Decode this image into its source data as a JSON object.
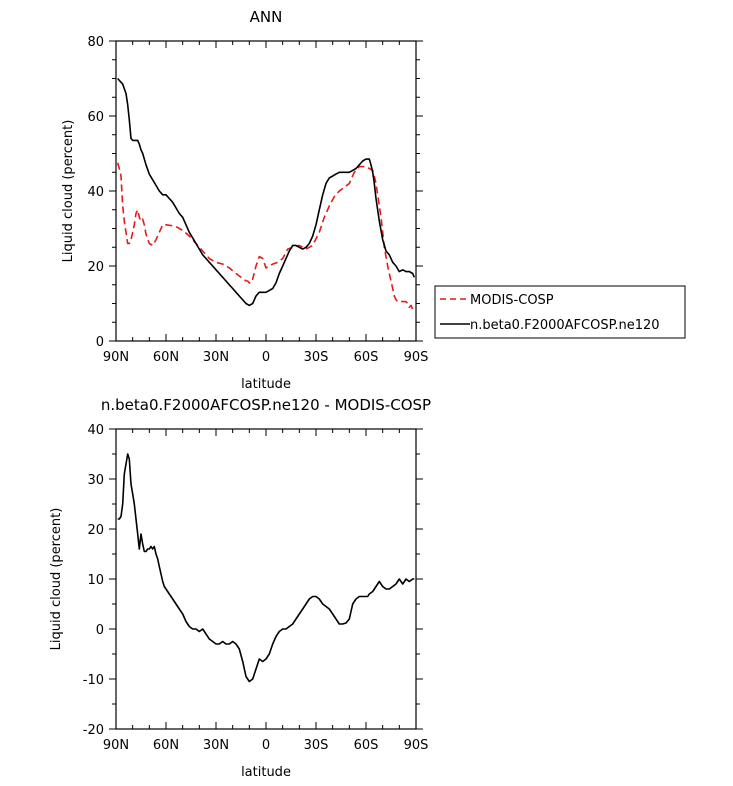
{
  "chart_data": [
    {
      "type": "line",
      "title": "ANN",
      "xlabel": "latitude",
      "ylabel": "Liquid cloud (percent)",
      "xlim": [
        90,
        -90
      ],
      "ylim": [
        0,
        80
      ],
      "xticks": [
        90,
        60,
        30,
        0,
        -30,
        -60,
        -90
      ],
      "xtick_labels": [
        "90N",
        "60N",
        "30N",
        "0",
        "30S",
        "60S",
        "90S"
      ],
      "yticks": [
        0,
        20,
        40,
        60,
        80
      ],
      "ytick_labels": [
        "0",
        "20",
        "40",
        "60",
        "80"
      ],
      "legend": {
        "placement": "right",
        "entries": [
          "MODIS-COSP",
          "n.beta0.F2000AFCOSP.ne120"
        ]
      },
      "series": [
        {
          "name": "MODIS-COSP",
          "color": "#e41a1c",
          "dash": "dashed",
          "x": [
            89,
            88,
            87,
            86,
            85,
            84,
            83,
            82,
            81,
            80,
            79,
            78,
            77,
            76,
            75,
            74,
            73,
            72,
            70,
            68,
            66,
            64,
            62,
            60,
            57,
            54,
            50,
            46,
            42,
            38,
            34,
            30,
            26,
            22,
            18,
            15,
            12,
            11,
            10,
            9,
            8,
            6,
            4,
            2,
            0,
            -2,
            -4,
            -7,
            -10,
            -13,
            -16,
            -20,
            -24,
            -28,
            -32,
            -35,
            -38,
            -41,
            -44,
            -47,
            -50,
            -53,
            -56,
            -58,
            -60,
            -62,
            -64,
            -65,
            -66,
            -67,
            -68,
            -69,
            -70,
            -71,
            -72,
            -73,
            -74,
            -75,
            -76,
            -77,
            -78,
            -79,
            -80,
            -82,
            -84,
            -85,
            -86,
            -87,
            -88,
            -89
          ],
          "y": [
            47.5,
            46,
            44,
            36,
            32,
            29,
            26,
            26,
            27,
            29,
            31,
            34,
            35,
            33,
            32,
            32.5,
            31,
            28.5,
            26,
            25.5,
            27,
            29,
            31,
            31,
            30.8,
            30.5,
            29.5,
            28,
            26,
            24,
            22,
            21,
            20.5,
            19.5,
            18,
            17,
            16,
            16,
            15.5,
            15.5,
            16.5,
            20,
            22.5,
            22,
            19.5,
            20,
            20.5,
            21,
            22,
            24.5,
            25,
            25.5,
            24.5,
            25.5,
            29,
            33,
            36,
            38.5,
            40,
            41,
            42,
            45,
            46.5,
            46.5,
            46.5,
            46,
            45.5,
            44,
            42,
            39,
            36,
            33,
            29,
            25,
            22.5,
            20,
            18,
            16,
            14,
            12,
            11,
            10.5,
            10.5,
            10.5,
            10.5,
            10,
            9,
            9.5,
            8.5,
            8.5
          ]
        },
        {
          "name": "n.beta0.F2000AFCOSP.ne120",
          "color": "#000000",
          "dash": "solid",
          "x": [
            89,
            88,
            86,
            84,
            83,
            82,
            81,
            80,
            79,
            78,
            77,
            76,
            75,
            74,
            72,
            70,
            68,
            66,
            64,
            62,
            60,
            58,
            56,
            54,
            52,
            50,
            48,
            46,
            44,
            42,
            40,
            38,
            36,
            34,
            32,
            30,
            28,
            26,
            24,
            22,
            20,
            18,
            16,
            14,
            12,
            10,
            8,
            6,
            4,
            2,
            0,
            -2,
            -4,
            -6,
            -8,
            -10,
            -12,
            -14,
            -16,
            -18,
            -20,
            -22,
            -24,
            -26,
            -28,
            -30,
            -32,
            -34,
            -36,
            -38,
            -40,
            -42,
            -44,
            -46,
            -48,
            -50,
            -52,
            -54,
            -56,
            -58,
            -60,
            -62,
            -63,
            -64,
            -65,
            -66,
            -68,
            -70,
            -72,
            -74,
            -76,
            -78,
            -80,
            -82,
            -84,
            -86,
            -88,
            -89
          ],
          "y": [
            70,
            69.5,
            68.5,
            66,
            63,
            59,
            54,
            53.5,
            53.5,
            53.5,
            53.5,
            52.5,
            51,
            50,
            47,
            44.5,
            43,
            41.5,
            40,
            39,
            39,
            38,
            37,
            35.5,
            34,
            33,
            31,
            29,
            27.5,
            26,
            24.5,
            23,
            22,
            21,
            20,
            19,
            18,
            17,
            16,
            15,
            14,
            13,
            12,
            11,
            10,
            9.5,
            10,
            12,
            13,
            13,
            13,
            13.5,
            14,
            15.5,
            18,
            20,
            22,
            24,
            25.5,
            25.5,
            25,
            24.5,
            25,
            26,
            28,
            31,
            35,
            39,
            42,
            43.5,
            44,
            44.5,
            45,
            45,
            45,
            45,
            45.5,
            46,
            47,
            48,
            48.5,
            48.5,
            47,
            45,
            42,
            38,
            32,
            27,
            24,
            23,
            21,
            20,
            18.5,
            19,
            18.5,
            18.5,
            18,
            17
          ]
        }
      ]
    },
    {
      "type": "line",
      "title": "n.beta0.F2000AFCOSP.ne120 - MODIS-COSP",
      "xlabel": "latitude",
      "ylabel": "Liquid cloud (percent)",
      "xlim": [
        90,
        -90
      ],
      "ylim": [
        -20,
        40
      ],
      "xticks": [
        90,
        60,
        30,
        0,
        -30,
        -60,
        -90
      ],
      "xtick_labels": [
        "90N",
        "60N",
        "30N",
        "0",
        "30S",
        "60S",
        "90S"
      ],
      "yticks": [
        -20,
        -10,
        0,
        10,
        20,
        30,
        40
      ],
      "ytick_labels": [
        "-20",
        "-10",
        "0",
        "10",
        "20",
        "30",
        "40"
      ],
      "series": [
        {
          "name": "n.beta0.F2000AFCOSP.ne120 - MODIS-COSP",
          "color": "#000000",
          "dash": "solid",
          "x": [
            89,
            88,
            87,
            86,
            85,
            84,
            83,
            82,
            81,
            80,
            79,
            78,
            77,
            76,
            75,
            74,
            73,
            72,
            71,
            70,
            69,
            68,
            67,
            66,
            65,
            64,
            63,
            62,
            61,
            60,
            58,
            56,
            54,
            52,
            50,
            48,
            46,
            44,
            42,
            40,
            38,
            36,
            34,
            32,
            30,
            28,
            26,
            24,
            22,
            20,
            18,
            16,
            14,
            12,
            10,
            8,
            6,
            4,
            2,
            0,
            -2,
            -4,
            -6,
            -8,
            -10,
            -12,
            -14,
            -16,
            -18,
            -20,
            -22,
            -24,
            -26,
            -28,
            -30,
            -32,
            -34,
            -36,
            -38,
            -40,
            -42,
            -44,
            -46,
            -48,
            -50,
            -52,
            -54,
            -56,
            -58,
            -60,
            -61,
            -62,
            -64,
            -66,
            -68,
            -70,
            -72,
            -74,
            -76,
            -78,
            -80,
            -82,
            -84,
            -86,
            -88,
            -89
          ],
          "y": [
            22,
            22,
            22.5,
            25,
            31,
            33,
            35,
            34,
            29,
            27,
            25,
            22,
            19,
            16,
            19,
            17,
            15.5,
            15.5,
            16,
            16,
            16.5,
            16,
            16.5,
            15,
            14,
            12.5,
            11,
            9.5,
            8.5,
            8,
            7,
            6,
            5,
            4,
            3,
            1.5,
            0.5,
            0,
            0,
            -0.5,
            0,
            -1,
            -2,
            -2.5,
            -3,
            -3,
            -2.5,
            -3,
            -3,
            -2.5,
            -3,
            -4,
            -6.5,
            -9.5,
            -10.5,
            -10,
            -8,
            -6,
            -6.5,
            -6,
            -5,
            -3,
            -1.5,
            -0.5,
            0,
            0,
            0.5,
            1,
            2,
            3,
            4,
            5,
            6,
            6.5,
            6.5,
            6,
            5,
            4.5,
            4,
            3,
            2,
            1,
            1,
            1.2,
            2,
            5,
            6,
            6.5,
            6.5,
            6.5,
            6.5,
            7,
            7.5,
            8.5,
            9.5,
            8.5,
            8,
            8,
            8.5,
            9,
            10,
            9,
            10,
            9.5,
            10,
            10
          ]
        }
      ]
    }
  ]
}
